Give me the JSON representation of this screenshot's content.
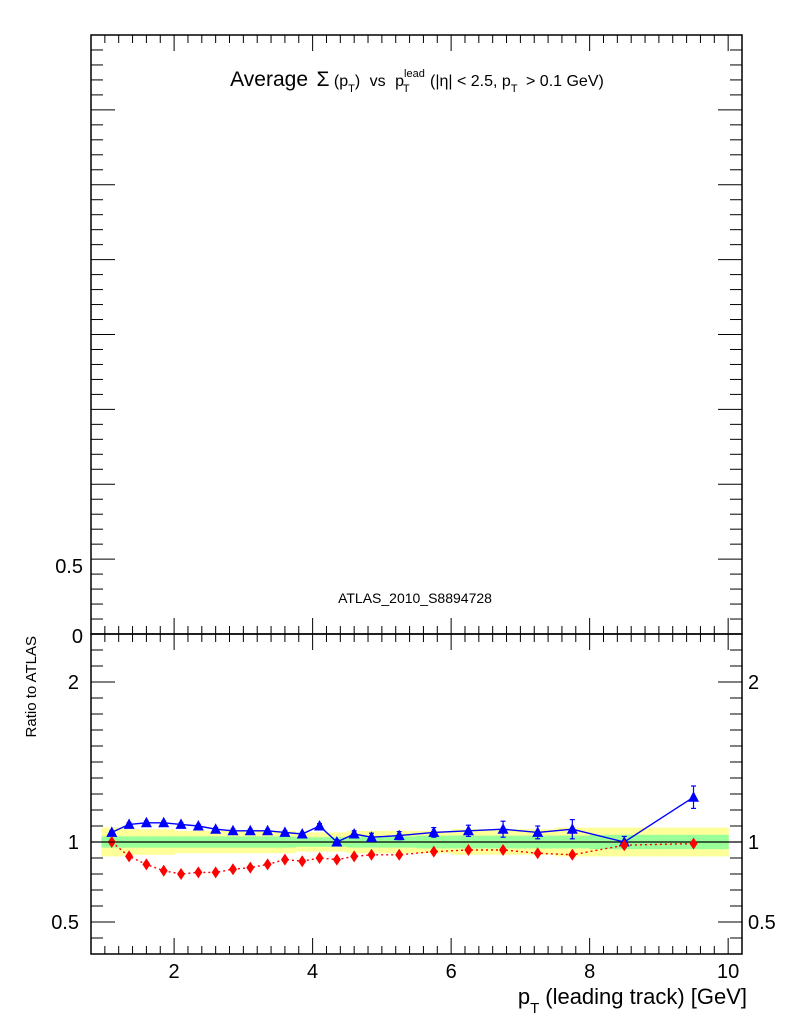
{
  "chart_data": [
    {
      "panel": "main",
      "type": "line",
      "title": {
        "prefix": "Average",
        "sigma": "Σ",
        "p": "p",
        "T": "T",
        "vs": "vs",
        "lead": "lead",
        "cuts_a": "(|η| < 2.5, p",
        "cuts_b": "> 0.1 GeV)"
      },
      "annotation": "ATLAS_2010_S8894728",
      "ylim": [
        0,
        4.0
      ],
      "y_tick_labels": [
        {
          "value": 0.5,
          "label": "0.5"
        },
        {
          "value": 0,
          "label": "0"
        }
      ]
    },
    {
      "panel": "ratio",
      "type": "line",
      "ylabel": "Ratio to ATLAS",
      "xlabel": {
        "p": "p",
        "T": "T",
        "rest": "(leading track) [GeV]"
      },
      "xlim": [
        0.8,
        10.2
      ],
      "ylim": [
        0.3,
        2.3
      ],
      "x_ticks": [
        2,
        4,
        6,
        8,
        10
      ],
      "y_ticks": [
        {
          "value": 2,
          "label": "2"
        },
        {
          "value": 1,
          "label": "1"
        },
        {
          "value": 0.5,
          "label": "0.5"
        }
      ],
      "bands": {
        "bins": [
          [
            0.95,
            1.25
          ],
          [
            1.25,
            1.5
          ],
          [
            1.5,
            1.75
          ],
          [
            1.75,
            2.0
          ],
          [
            2.0,
            2.25
          ],
          [
            2.25,
            2.5
          ],
          [
            2.5,
            2.75
          ],
          [
            2.75,
            3.0
          ],
          [
            3.0,
            3.25
          ],
          [
            3.25,
            3.5
          ],
          [
            3.5,
            3.75
          ],
          [
            3.75,
            4.0
          ],
          [
            4.0,
            4.25
          ],
          [
            4.25,
            4.5
          ],
          [
            4.5,
            4.75
          ],
          [
            4.75,
            5.0
          ],
          [
            5.0,
            5.5
          ],
          [
            5.5,
            6.0
          ],
          [
            6.0,
            6.5
          ],
          [
            6.5,
            7.0
          ],
          [
            7.0,
            7.5
          ],
          [
            7.5,
            8.0
          ],
          [
            8.0,
            9.0
          ],
          [
            9.0,
            10.0
          ]
        ],
        "outer": [
          0.09,
          0.08,
          0.08,
          0.08,
          0.07,
          0.07,
          0.07,
          0.07,
          0.07,
          0.07,
          0.07,
          0.06,
          0.06,
          0.06,
          0.07,
          0.07,
          0.07,
          0.07,
          0.08,
          0.08,
          0.08,
          0.09,
          0.09,
          0.09
        ],
        "inner": [
          0.035,
          0.035,
          0.035,
          0.035,
          0.035,
          0.035,
          0.035,
          0.035,
          0.035,
          0.035,
          0.035,
          0.03,
          0.03,
          0.03,
          0.035,
          0.035,
          0.035,
          0.04,
          0.04,
          0.04,
          0.04,
          0.04,
          0.045,
          0.045
        ],
        "outer_color": "#ffff99",
        "inner_color": "#99ff99"
      },
      "series": [
        {
          "color": "#0000ff",
          "marker": "triangle",
          "x": [
            1.1,
            1.35,
            1.6,
            1.85,
            2.1,
            2.35,
            2.6,
            2.85,
            3.1,
            3.35,
            3.6,
            3.85,
            4.1,
            4.35,
            4.6,
            4.85,
            5.25,
            5.75,
            6.25,
            6.75,
            7.25,
            7.75,
            8.5,
            9.5
          ],
          "y": [
            1.06,
            1.11,
            1.12,
            1.12,
            1.11,
            1.1,
            1.08,
            1.07,
            1.07,
            1.07,
            1.06,
            1.05,
            1.1,
            1.0,
            1.05,
            1.03,
            1.04,
            1.06,
            1.07,
            1.08,
            1.06,
            1.08,
            1.0,
            1.28
          ],
          "err": [
            0.01,
            0.01,
            0.01,
            0.01,
            0.01,
            0.01,
            0.01,
            0.01,
            0.01,
            0.01,
            0.01,
            0.01,
            0.015,
            0.015,
            0.02,
            0.025,
            0.025,
            0.03,
            0.035,
            0.05,
            0.04,
            0.06,
            0.035,
            0.07
          ]
        },
        {
          "color": "#ff0000",
          "marker": "diamond",
          "x": [
            1.1,
            1.35,
            1.6,
            1.85,
            2.1,
            2.35,
            2.6,
            2.85,
            3.1,
            3.35,
            3.6,
            3.85,
            4.1,
            4.35,
            4.6,
            4.85,
            5.25,
            5.75,
            6.25,
            6.75,
            7.25,
            7.75,
            8.5,
            9.5
          ],
          "y": [
            1.0,
            0.91,
            0.86,
            0.82,
            0.8,
            0.81,
            0.81,
            0.83,
            0.84,
            0.86,
            0.89,
            0.88,
            0.9,
            0.89,
            0.91,
            0.92,
            0.92,
            0.94,
            0.95,
            0.95,
            0.93,
            0.92,
            0.98,
            0.99
          ],
          "err": [
            0,
            0,
            0,
            0,
            0,
            0,
            0,
            0,
            0,
            0,
            0,
            0,
            0,
            0,
            0,
            0,
            0,
            0,
            0,
            0,
            0,
            0,
            0,
            0
          ]
        }
      ]
    }
  ]
}
